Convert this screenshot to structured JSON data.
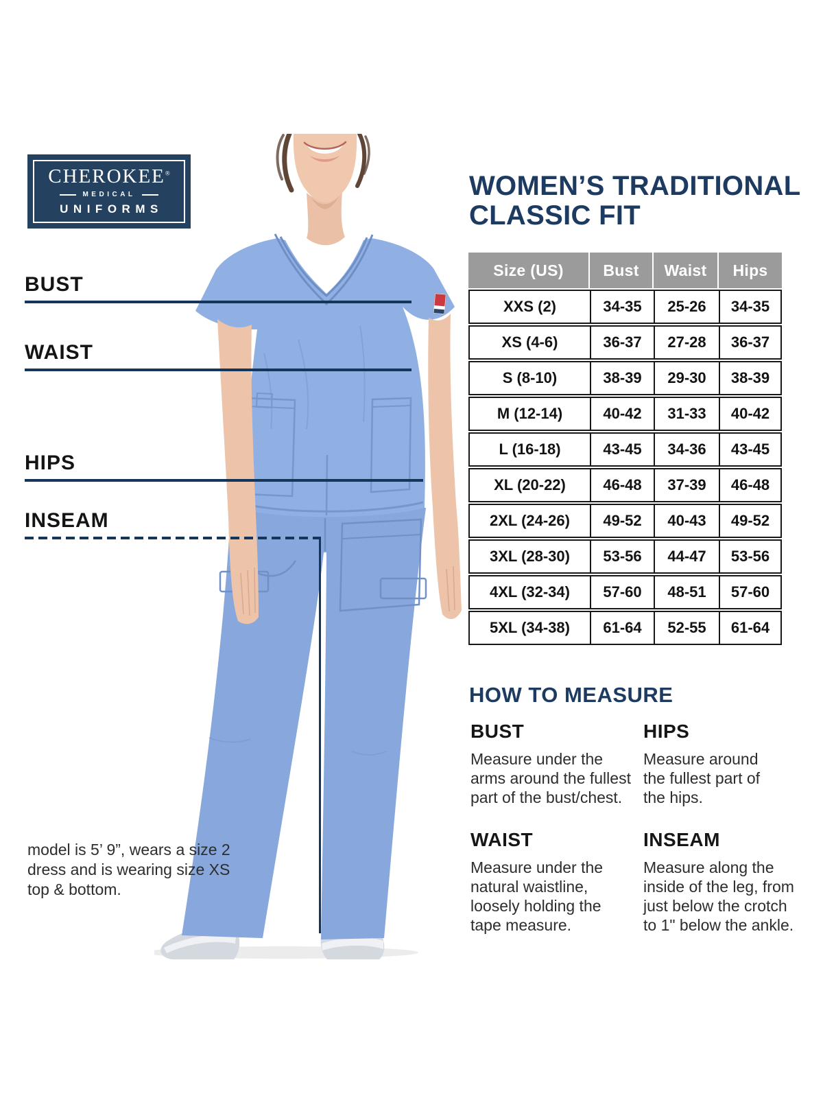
{
  "brand_logo": {
    "name": "CHEROKEE",
    "registered_mark": "®",
    "division": "MEDICAL",
    "product": "UNIFORMS"
  },
  "title": {
    "line1": "WOMEN’S TRADITIONAL",
    "line2": "CLASSIC FIT"
  },
  "figure_annotations": [
    {
      "id": "bust",
      "label": "BUST",
      "line_style": "solid"
    },
    {
      "id": "waist",
      "label": "WAIST",
      "line_style": "solid"
    },
    {
      "id": "hips",
      "label": "HIPS",
      "line_style": "solid"
    },
    {
      "id": "inseam",
      "label": "INSEAM",
      "line_style": "dashed"
    }
  ],
  "chart_data": {
    "type": "table",
    "title": "Women’s Traditional Classic Fit size chart (inches)",
    "columns": [
      "Size (US)",
      "Bust",
      "Waist",
      "Hips"
    ],
    "rows": [
      [
        "XXS (2)",
        "34-35",
        "25-26",
        "34-35"
      ],
      [
        "XS (4-6)",
        "36-37",
        "27-28",
        "36-37"
      ],
      [
        "S (8-10)",
        "38-39",
        "29-30",
        "38-39"
      ],
      [
        "M (12-14)",
        "40-42",
        "31-33",
        "40-42"
      ],
      [
        "L (16-18)",
        "43-45",
        "34-36",
        "43-45"
      ],
      [
        "XL (20-22)",
        "46-48",
        "37-39",
        "46-48"
      ],
      [
        "2XL (24-26)",
        "49-52",
        "40-43",
        "49-52"
      ],
      [
        "3XL (28-30)",
        "53-56",
        "44-47",
        "53-56"
      ],
      [
        "4XL (32-34)",
        "57-60",
        "48-51",
        "57-60"
      ],
      [
        "5XL (34-38)",
        "61-64",
        "52-55",
        "61-64"
      ]
    ]
  },
  "how_to_measure": {
    "heading": "HOW TO MEASURE",
    "sections": [
      {
        "name": "BUST",
        "text": "Measure under the\narms around the fullest\npart of the bust/chest."
      },
      {
        "name": "HIPS",
        "text": "Measure around\nthe fullest part of\nthe hips."
      },
      {
        "name": "WAIST",
        "text": "Measure under the\nnatural waistline,\nloosely holding the\ntape measure."
      },
      {
        "name": "INSEAM",
        "text": "Measure along the\ninside of the leg, from\njust below the crotch\nto 1\" below the ankle."
      }
    ]
  },
  "model_note": "model is 5’ 9”, wears a size 2\ndress and is wearing size XS\ntop & bottom.",
  "colors": {
    "navy": "#1d3b60",
    "annotation_line": "#16355a",
    "logo_background": "#24415f",
    "table_header_gray": "#9b9b9b",
    "table_border_black": "#181818",
    "scrub_blue": "#8cabdf",
    "body_text_gray": "#2d2d2d"
  }
}
